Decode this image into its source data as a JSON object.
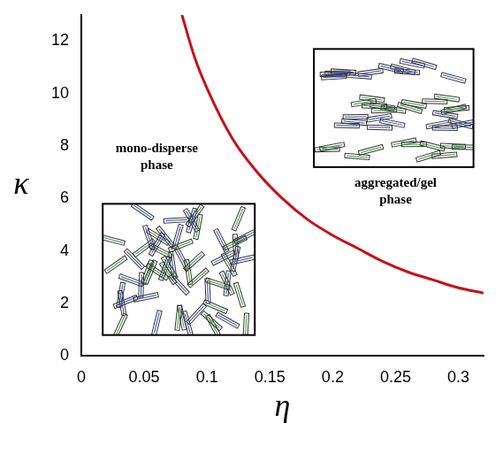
{
  "chart_data": {
    "type": "line",
    "x_label": "η",
    "y_label": "κ",
    "x": [
      0.08,
      0.09,
      0.1,
      0.12,
      0.14,
      0.16,
      0.18,
      0.2,
      0.22,
      0.24,
      0.26,
      0.28,
      0.3,
      0.32
    ],
    "values": [
      13.0,
      11.4,
      10.2,
      8.3,
      7.0,
      6.0,
      5.2,
      4.6,
      4.1,
      3.6,
      3.2,
      2.9,
      2.6,
      2.4
    ],
    "color": "#c8101a",
    "xlim": [
      0,
      0.32
    ],
    "xticks": [
      0,
      0.05,
      0.1,
      0.15,
      0.2,
      0.25,
      0.3
    ],
    "ylim": [
      0,
      13
    ],
    "yticks": [
      0,
      2,
      4,
      6,
      8,
      10,
      12
    ],
    "grid": false,
    "annotations": [
      "mono-disperse phase",
      "aggregated/gel phase"
    ]
  }
}
